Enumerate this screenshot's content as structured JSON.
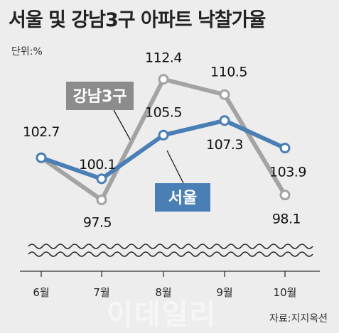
{
  "chart_data": {
    "type": "line",
    "title": "서울 및 강남3구 아파트 낙찰가율",
    "unit_label": "단위:%",
    "source": "자료:지지옥션",
    "watermark": "이데일리",
    "categories": [
      "6월",
      "7월",
      "8월",
      "9월",
      "10월"
    ],
    "ylim": [
      95,
      115
    ],
    "series": [
      {
        "name": "강남3구",
        "values": [
          102.7,
          97.5,
          112.4,
          110.5,
          98.1
        ],
        "color": "#a3a3a3",
        "label_bg": "#8c8c8c"
      },
      {
        "name": "서울",
        "values": [
          102.7,
          100.1,
          105.5,
          107.3,
          103.9
        ],
        "color": "#4a7fb5",
        "label_bg": "#4a7fb5"
      }
    ],
    "point_labels": [
      {
        "series": 1,
        "index": 0,
        "text": "102.7"
      },
      {
        "series": 1,
        "index": 1,
        "text": "100.1"
      },
      {
        "series": 0,
        "index": 1,
        "text": "97.5"
      },
      {
        "series": 0,
        "index": 2,
        "text": "112.4"
      },
      {
        "series": 1,
        "index": 2,
        "text": "105.5"
      },
      {
        "series": 0,
        "index": 3,
        "text": "110.5"
      },
      {
        "series": 1,
        "index": 3,
        "text": "107.3"
      },
      {
        "series": 1,
        "index": 4,
        "text": "103.9"
      },
      {
        "series": 0,
        "index": 4,
        "text": "98.1"
      }
    ],
    "grid": false,
    "legend": "inline-callouts"
  }
}
